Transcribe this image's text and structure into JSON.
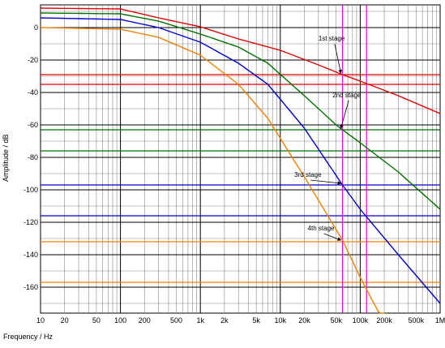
{
  "chart_data": {
    "type": "line",
    "title": "",
    "xlabel": "Frequency / Hz",
    "ylabel": "Amplitude / dB",
    "x_scale": "log",
    "xlim": [
      10,
      1000000
    ],
    "ylim": [
      -176,
      14
    ],
    "grid": true,
    "x_ticks": [
      {
        "v": 10,
        "label": "10"
      },
      {
        "v": 20,
        "label": "20"
      },
      {
        "v": 50,
        "label": "50"
      },
      {
        "v": 100,
        "label": "100"
      },
      {
        "v": 200,
        "label": "200"
      },
      {
        "v": 500,
        "label": "500"
      },
      {
        "v": 1000,
        "label": "1k"
      },
      {
        "v": 2000,
        "label": "2k"
      },
      {
        "v": 5000,
        "label": "5k"
      },
      {
        "v": 10000,
        "label": "10k"
      },
      {
        "v": 20000,
        "label": "20k"
      },
      {
        "v": 50000,
        "label": "50k"
      },
      {
        "v": 100000,
        "label": "100k"
      },
      {
        "v": 200000,
        "label": "200k"
      },
      {
        "v": 500000,
        "label": "500k"
      },
      {
        "v": 1000000,
        "label": "1M"
      }
    ],
    "y_ticks": [
      {
        "v": 0,
        "label": "0"
      },
      {
        "v": -20,
        "label": "-20"
      },
      {
        "v": -40,
        "label": "-40"
      },
      {
        "v": -60,
        "label": "-60"
      },
      {
        "v": -80,
        "label": "-80"
      },
      {
        "v": -100,
        "label": "-100"
      },
      {
        "v": -120,
        "label": "-120"
      },
      {
        "v": -140,
        "label": "-140"
      },
      {
        "v": -160,
        "label": "-160"
      }
    ],
    "series": [
      {
        "color": "#e00000",
        "x": [
          10,
          100,
          300,
          1000,
          3000,
          10000,
          30000,
          60000,
          100000,
          300000,
          1000000
        ],
        "y": [
          12,
          11.5,
          6,
          0.5,
          -7,
          -14,
          -23,
          -29,
          -33,
          -42,
          -53
        ]
      },
      {
        "color": "#007000",
        "x": [
          10,
          100,
          300,
          1000,
          3000,
          7000,
          20000,
          50000,
          60000,
          100000,
          300000,
          1000000
        ],
        "y": [
          9,
          8.5,
          4,
          -4,
          -12,
          -22,
          -42,
          -60,
          -63,
          -71,
          -89,
          -112
        ]
      },
      {
        "color": "#0000d0",
        "x": [
          10,
          100,
          300,
          1000,
          3000,
          7000,
          20000,
          60000,
          100000,
          300000,
          1000000
        ],
        "y": [
          6,
          5,
          0,
          -9,
          -22,
          -35,
          -62,
          -97,
          -112,
          -140,
          -170
        ]
      },
      {
        "color": "#f08000",
        "x": [
          10,
          100,
          300,
          1000,
          3000,
          7000,
          20000,
          60000,
          100000,
          200000
        ],
        "y": [
          0,
          -1,
          -6,
          -17,
          -35,
          -56,
          -92,
          -131,
          -154,
          -182
        ]
      }
    ],
    "hlines": [
      {
        "y": -29,
        "color": "#e00000"
      },
      {
        "y": -35,
        "color": "#e00000"
      },
      {
        "y": -63,
        "color": "#007000"
      },
      {
        "y": -76,
        "color": "#007000"
      },
      {
        "y": -97,
        "color": "#0000d0"
      },
      {
        "y": -116,
        "color": "#0000d0"
      },
      {
        "y": -132,
        "color": "#f08000"
      },
      {
        "y": -157,
        "color": "#f08000"
      }
    ],
    "vlines": [
      {
        "x": 60000,
        "color": "#e000e0"
      },
      {
        "x": 120000,
        "color": "#e000e0"
      }
    ],
    "annotations": [
      {
        "text": "1st stage",
        "x": 30000,
        "y": -8,
        "ax": 60000,
        "ay": -29
      },
      {
        "text": "2nd stage",
        "x": 45000,
        "y": -43,
        "ax": 60000,
        "ay": -63
      },
      {
        "text": "3rd stage",
        "x": 15000,
        "y": -92,
        "ax": 60000,
        "ay": -97
      },
      {
        "text": "4th stage",
        "x": 22000,
        "y": -125,
        "ax": 60000,
        "ay": -132
      }
    ]
  }
}
